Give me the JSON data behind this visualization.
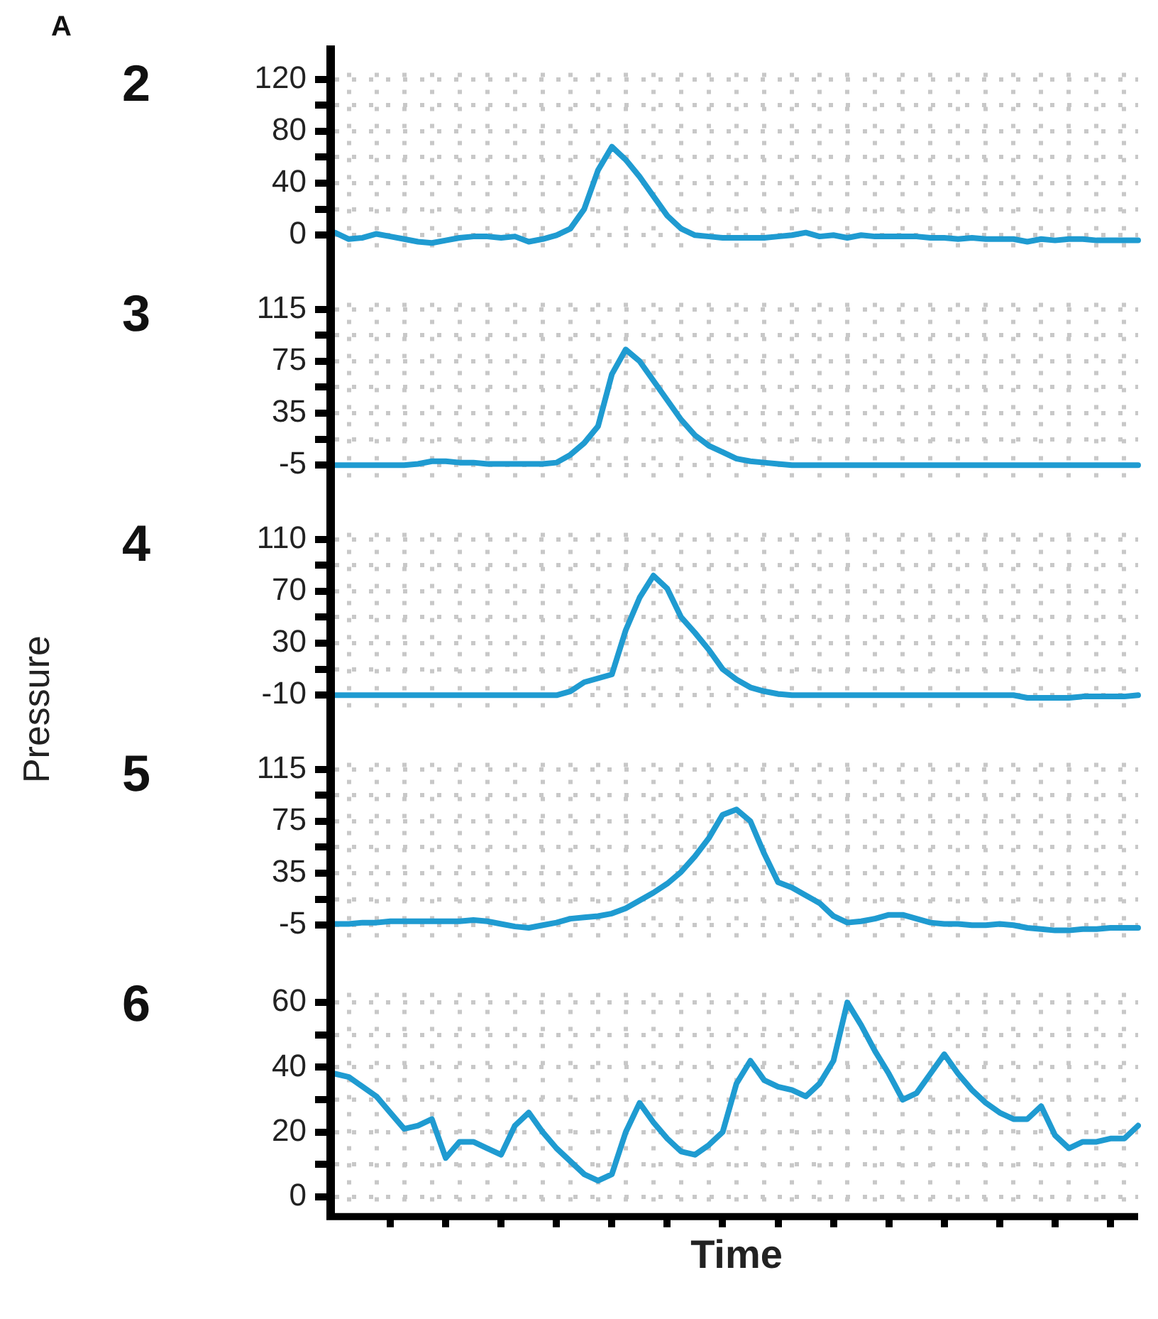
{
  "chart_data": [
    {
      "type": "line",
      "title": "2",
      "annotations": [
        "A"
      ],
      "categories": [
        null,
        null,
        null,
        null,
        null,
        null,
        null,
        null,
        null,
        null,
        null,
        null,
        null,
        null,
        null,
        null,
        null,
        null,
        null,
        null,
        null,
        null,
        null,
        null,
        null,
        null,
        null,
        null,
        null,
        null,
        null,
        null,
        null,
        null,
        null,
        null,
        null,
        null,
        null,
        null,
        null,
        null,
        null,
        null,
        null,
        null,
        null,
        null,
        null,
        null,
        null,
        null,
        null,
        null,
        null,
        null,
        null,
        null,
        null
      ],
      "values": [
        2,
        -3,
        -2,
        1,
        -1,
        -3,
        -5,
        -6,
        -4,
        -2,
        -1,
        -1,
        -2,
        -1,
        -5,
        -3,
        0,
        5,
        20,
        50,
        68,
        58,
        45,
        30,
        15,
        5,
        0,
        -1,
        -2,
        -2,
        -2,
        -2,
        -1,
        0,
        2,
        -1,
        0,
        -2,
        0,
        -1,
        -1,
        -1,
        -1,
        -2,
        -2,
        -3,
        -2,
        -3,
        -3,
        -3,
        -5,
        -3,
        -4,
        -3,
        -3,
        -4,
        -4,
        -4,
        -4
      ],
      "color": "#1f9bd1",
      "ylim": [
        -10,
        125
      ],
      "yticks": [
        0,
        {
          "value": 20,
          "label": null
        },
        40,
        {
          "value": 60,
          "label": null
        },
        80,
        {
          "value": 100,
          "label": null
        },
        120
      ],
      "grid": true,
      "marker": "none",
      "line_style": "solid",
      "tick_labels": "y"
    },
    {
      "type": "line",
      "title": "3",
      "categories": [
        null,
        null,
        null,
        null,
        null,
        null,
        null,
        null,
        null,
        null,
        null,
        null,
        null,
        null,
        null,
        null,
        null,
        null,
        null,
        null,
        null,
        null,
        null,
        null,
        null,
        null,
        null,
        null,
        null,
        null,
        null,
        null,
        null,
        null,
        null,
        null,
        null,
        null,
        null,
        null,
        null,
        null,
        null,
        null,
        null,
        null,
        null,
        null,
        null,
        null,
        null,
        null,
        null,
        null,
        null,
        null,
        null,
        null,
        null
      ],
      "values": [
        -5,
        -5,
        -5,
        -5,
        -5,
        -5,
        -4,
        -2,
        -2,
        -3,
        -3,
        -4,
        -4,
        -4,
        -4,
        -4,
        -3,
        3,
        12,
        25,
        65,
        84,
        75,
        60,
        45,
        30,
        18,
        10,
        5,
        0,
        -2,
        -3,
        -4,
        -5,
        -5,
        -5,
        -5,
        -5,
        -5,
        -5,
        -5,
        -5,
        -5,
        -5,
        -5,
        -5,
        -5,
        -5,
        -5,
        -5,
        -5,
        -5,
        -5,
        -5,
        -5,
        -5,
        -5,
        -5,
        -5
      ],
      "color": "#1f9bd1",
      "ylim": [
        -15,
        120
      ],
      "yticks": [
        -5,
        {
          "value": 15,
          "label": null
        },
        35,
        {
          "value": 55,
          "label": null
        },
        75,
        {
          "value": 95,
          "label": null
        },
        115
      ],
      "grid": true,
      "marker": "none",
      "line_style": "solid",
      "tick_labels": "y"
    },
    {
      "type": "line",
      "title": "4",
      "ylabel": "Pressure",
      "categories": [
        null,
        null,
        null,
        null,
        null,
        null,
        null,
        null,
        null,
        null,
        null,
        null,
        null,
        null,
        null,
        null,
        null,
        null,
        null,
        null,
        null,
        null,
        null,
        null,
        null,
        null,
        null,
        null,
        null,
        null,
        null,
        null,
        null,
        null,
        null,
        null,
        null,
        null,
        null,
        null,
        null,
        null,
        null,
        null,
        null,
        null,
        null,
        null,
        null,
        null,
        null,
        null,
        null,
        null,
        null,
        null,
        null,
        null,
        null
      ],
      "values": [
        -10,
        -10,
        -10,
        -10,
        -10,
        -10,
        -10,
        -10,
        -10,
        -10,
        -10,
        -10,
        -10,
        -10,
        -10,
        -10,
        -10,
        -7,
        0,
        3,
        6,
        40,
        65,
        82,
        72,
        50,
        38,
        25,
        10,
        2,
        -4,
        -7,
        -9,
        -10,
        -10,
        -10,
        -10,
        -10,
        -10,
        -10,
        -10,
        -10,
        -10,
        -10,
        -10,
        -10,
        -10,
        -10,
        -10,
        -10,
        -12,
        -12,
        -12,
        -12,
        -11,
        -11,
        -11,
        -11,
        -10
      ],
      "color": "#1f9bd1",
      "ylim": [
        -20,
        115
      ],
      "yticks": [
        -10,
        {
          "value": 10,
          "label": null
        },
        30,
        {
          "value": 50,
          "label": null
        },
        70,
        {
          "value": 90,
          "label": null
        },
        110
      ],
      "grid": true,
      "marker": "none",
      "line_style": "solid",
      "tick_labels": "y"
    },
    {
      "type": "line",
      "title": "5",
      "categories": [
        null,
        null,
        null,
        null,
        null,
        null,
        null,
        null,
        null,
        null,
        null,
        null,
        null,
        null,
        null,
        null,
        null,
        null,
        null,
        null,
        null,
        null,
        null,
        null,
        null,
        null,
        null,
        null,
        null,
        null,
        null,
        null,
        null,
        null,
        null,
        null,
        null,
        null,
        null,
        null,
        null,
        null,
        null,
        null,
        null,
        null,
        null,
        null,
        null,
        null,
        null,
        null,
        null,
        null,
        null,
        null,
        null,
        null,
        null
      ],
      "values": [
        -4,
        -4,
        -3,
        -3,
        -2,
        -2,
        -2,
        -2,
        -2,
        -2,
        -1,
        -2,
        -4,
        -6,
        -7,
        -5,
        -3,
        0,
        1,
        2,
        4,
        8,
        14,
        20,
        27,
        36,
        48,
        62,
        80,
        84,
        75,
        50,
        28,
        24,
        18,
        12,
        2,
        -3,
        -2,
        0,
        3,
        3,
        0,
        -3,
        -4,
        -4,
        -5,
        -5,
        -4,
        -5,
        -7,
        -8,
        -9,
        -9,
        -8,
        -8,
        -7,
        -7,
        -7
      ],
      "color": "#1f9bd1",
      "ylim": [
        -15,
        120
      ],
      "yticks": [
        -5,
        {
          "value": 15,
          "label": null
        },
        35,
        {
          "value": 55,
          "label": null
        },
        75,
        {
          "value": 95,
          "label": null
        },
        115
      ],
      "grid": true,
      "marker": "none",
      "line_style": "solid",
      "tick_labels": "y"
    },
    {
      "type": "line",
      "title": "6",
      "xlabel": "Time",
      "categories": [
        null,
        null,
        null,
        null,
        null,
        null,
        null,
        null,
        null,
        null,
        null,
        null,
        null,
        null,
        null,
        null,
        null,
        null,
        null,
        null,
        null,
        null,
        null,
        null,
        null,
        null,
        null,
        null,
        null,
        null,
        null,
        null,
        null,
        null,
        null,
        null,
        null,
        null,
        null,
        null,
        null,
        null,
        null,
        null,
        null,
        null,
        null,
        null,
        null,
        null,
        null,
        null,
        null,
        null,
        null,
        null,
        null,
        null,
        null
      ],
      "values": [
        38,
        37,
        34,
        31,
        26,
        21,
        22,
        24,
        12,
        17,
        17,
        15,
        13,
        22,
        26,
        20,
        15,
        11,
        7,
        5,
        7,
        20,
        29,
        23,
        18,
        14,
        13,
        16,
        20,
        35,
        42,
        36,
        34,
        33,
        31,
        35,
        42,
        60,
        53,
        45,
        38,
        30,
        32,
        38,
        44,
        38,
        33,
        29,
        26,
        24,
        24,
        28,
        19,
        15,
        17,
        17,
        18,
        18,
        22
      ],
      "color": "#1f9bd1",
      "ylim": [
        -5,
        63
      ],
      "yticks": [
        0,
        {
          "value": 10,
          "label": null
        },
        20,
        {
          "value": 30,
          "label": null
        },
        40,
        {
          "value": 50,
          "label": null
        },
        60
      ],
      "grid": true,
      "marker": "none",
      "line_style": "solid",
      "tick_labels": "y"
    }
  ]
}
